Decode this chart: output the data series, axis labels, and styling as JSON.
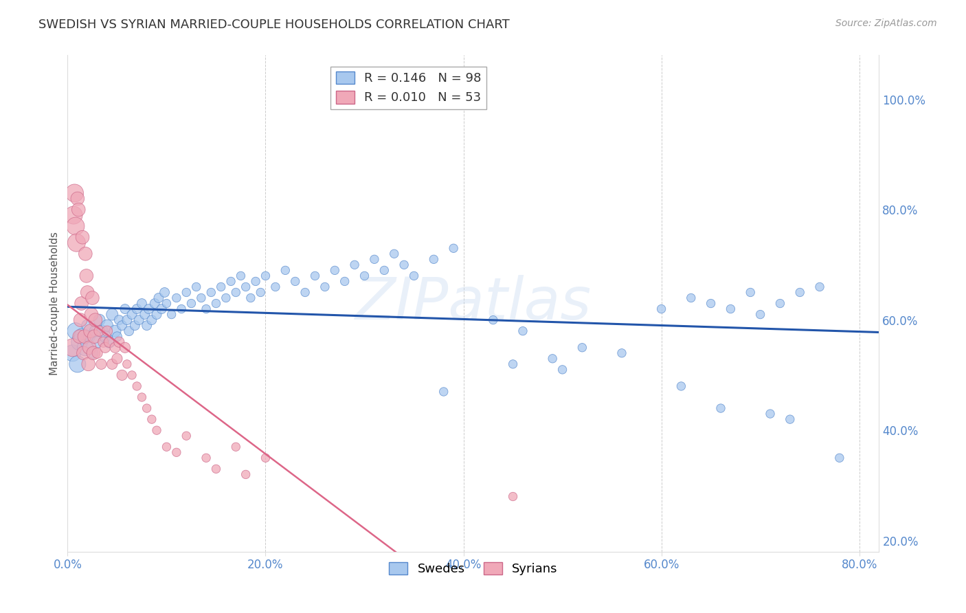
{
  "title": "SWEDISH VS SYRIAN MARRIED-COUPLE HOUSEHOLDS CORRELATION CHART",
  "source": "Source: ZipAtlas.com",
  "ylabel": "Married-couple Households",
  "xlim": [
    0.0,
    0.82
  ],
  "ylim": [
    0.18,
    1.08
  ],
  "xtick_vals": [
    0.0,
    0.2,
    0.4,
    0.6,
    0.8
  ],
  "xtick_labels": [
    "0.0%",
    "20.0%",
    "40.0%",
    "60.0%",
    "80.0%"
  ],
  "ytick_vals": [
    0.2,
    0.4,
    0.6,
    0.8,
    1.0
  ],
  "ytick_labels": [
    "20.0%",
    "40.0%",
    "60.0%",
    "80.0%",
    "100.0%"
  ],
  "grid_color": "#cccccc",
  "background_color": "#ffffff",
  "watermark": "ZIPatlas",
  "tick_color": "#5588cc",
  "swedes_color": "#a8c8ee",
  "swedes_edge_color": "#5588cc",
  "syrians_color": "#f0a8b8",
  "syrians_edge_color": "#cc6688",
  "trend_swedes_color": "#2255aa",
  "trend_syrians_color": "#dd6688",
  "legend_r1": "R = 0.146",
  "legend_n1": "N = 98",
  "legend_r2": "R = 0.010",
  "legend_n2": "N = 53",
  "legend1_face": "#a8c8ee",
  "legend1_edge": "#5588cc",
  "legend2_face": "#f0a8b8",
  "legend2_edge": "#cc6688",
  "swedes_x": [
    0.005,
    0.008,
    0.01,
    0.012,
    0.015,
    0.018,
    0.02,
    0.022,
    0.025,
    0.028,
    0.03,
    0.032,
    0.035,
    0.038,
    0.04,
    0.042,
    0.045,
    0.048,
    0.05,
    0.052,
    0.055,
    0.058,
    0.06,
    0.062,
    0.065,
    0.068,
    0.07,
    0.072,
    0.075,
    0.078,
    0.08,
    0.082,
    0.085,
    0.088,
    0.09,
    0.092,
    0.095,
    0.098,
    0.1,
    0.105,
    0.11,
    0.115,
    0.12,
    0.125,
    0.13,
    0.135,
    0.14,
    0.145,
    0.15,
    0.155,
    0.16,
    0.165,
    0.17,
    0.175,
    0.18,
    0.185,
    0.19,
    0.195,
    0.2,
    0.21,
    0.22,
    0.23,
    0.24,
    0.25,
    0.26,
    0.27,
    0.28,
    0.29,
    0.3,
    0.31,
    0.32,
    0.33,
    0.34,
    0.35,
    0.37,
    0.39,
    0.43,
    0.46,
    0.49,
    0.52,
    0.56,
    0.6,
    0.63,
    0.65,
    0.67,
    0.69,
    0.7,
    0.72,
    0.74,
    0.76,
    0.45,
    0.5,
    0.38,
    0.62,
    0.66,
    0.71,
    0.73,
    0.78
  ],
  "swedes_y": [
    0.54,
    0.58,
    0.52,
    0.56,
    0.57,
    0.55,
    0.59,
    0.57,
    0.54,
    0.58,
    0.56,
    0.6,
    0.58,
    0.57,
    0.59,
    0.56,
    0.61,
    0.58,
    0.57,
    0.6,
    0.59,
    0.62,
    0.6,
    0.58,
    0.61,
    0.59,
    0.62,
    0.6,
    0.63,
    0.61,
    0.59,
    0.62,
    0.6,
    0.63,
    0.61,
    0.64,
    0.62,
    0.65,
    0.63,
    0.61,
    0.64,
    0.62,
    0.65,
    0.63,
    0.66,
    0.64,
    0.62,
    0.65,
    0.63,
    0.66,
    0.64,
    0.67,
    0.65,
    0.68,
    0.66,
    0.64,
    0.67,
    0.65,
    0.68,
    0.66,
    0.69,
    0.67,
    0.65,
    0.68,
    0.66,
    0.69,
    0.67,
    0.7,
    0.68,
    0.71,
    0.69,
    0.72,
    0.7,
    0.68,
    0.71,
    0.73,
    0.6,
    0.58,
    0.53,
    0.55,
    0.54,
    0.62,
    0.64,
    0.63,
    0.62,
    0.65,
    0.61,
    0.63,
    0.65,
    0.66,
    0.52,
    0.51,
    0.47,
    0.48,
    0.44,
    0.43,
    0.42,
    0.35
  ],
  "syrians_x": [
    0.005,
    0.006,
    0.007,
    0.008,
    0.009,
    0.01,
    0.011,
    0.012,
    0.013,
    0.014,
    0.015,
    0.016,
    0.017,
    0.018,
    0.019,
    0.02,
    0.021,
    0.022,
    0.023,
    0.024,
    0.025,
    0.026,
    0.027,
    0.028,
    0.03,
    0.032,
    0.034,
    0.036,
    0.038,
    0.04,
    0.042,
    0.045,
    0.048,
    0.05,
    0.052,
    0.055,
    0.058,
    0.06,
    0.065,
    0.07,
    0.075,
    0.08,
    0.085,
    0.09,
    0.1,
    0.11,
    0.12,
    0.14,
    0.15,
    0.17,
    0.18,
    0.2,
    0.45
  ],
  "syrians_y": [
    0.55,
    0.79,
    0.83,
    0.77,
    0.74,
    0.82,
    0.8,
    0.57,
    0.6,
    0.63,
    0.75,
    0.54,
    0.57,
    0.72,
    0.68,
    0.65,
    0.52,
    0.55,
    0.58,
    0.61,
    0.64,
    0.54,
    0.57,
    0.6,
    0.54,
    0.58,
    0.52,
    0.56,
    0.55,
    0.58,
    0.56,
    0.52,
    0.55,
    0.53,
    0.56,
    0.5,
    0.55,
    0.52,
    0.5,
    0.48,
    0.46,
    0.44,
    0.42,
    0.4,
    0.37,
    0.36,
    0.39,
    0.35,
    0.33,
    0.37,
    0.32,
    0.35,
    0.28
  ]
}
